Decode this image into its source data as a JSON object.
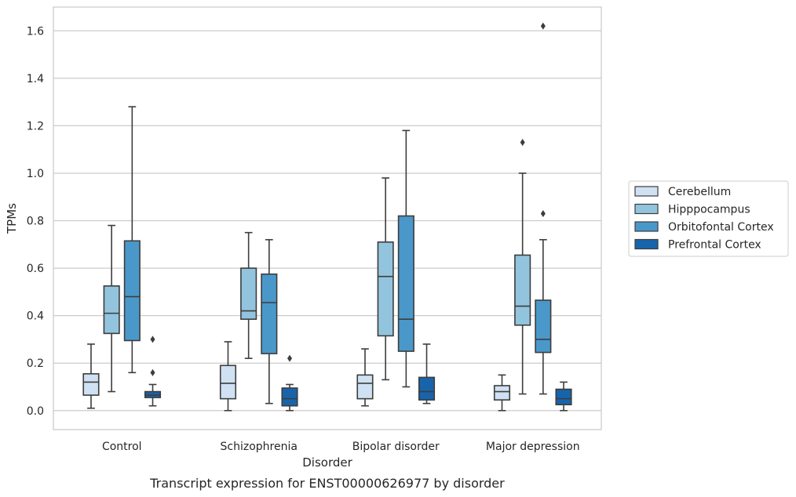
{
  "chart_data": {
    "type": "box",
    "title": "",
    "caption": "Transcript expression for ENST00000626977 by disorder",
    "xlabel": "Disorder",
    "ylabel": "TPMs",
    "ylim": [
      -0.08,
      1.7
    ],
    "yticks": [
      "0.0",
      "0.2",
      "0.4",
      "0.6",
      "0.8",
      "1.0",
      "1.2",
      "1.4",
      "1.6"
    ],
    "grid": true,
    "legend_position": "right",
    "categories": [
      "Control",
      "Schizophrenia",
      "Bipolar disorder",
      "Major depression"
    ],
    "series": [
      {
        "name": "Cerebellum",
        "color": "#cfe1f2",
        "boxes": [
          {
            "whislo": 0.01,
            "q1": 0.065,
            "med": 0.12,
            "q3": 0.155,
            "whishi": 0.28,
            "fliers": []
          },
          {
            "whislo": 0.0,
            "q1": 0.05,
            "med": 0.115,
            "q3": 0.19,
            "whishi": 0.29,
            "fliers": []
          },
          {
            "whislo": 0.02,
            "q1": 0.05,
            "med": 0.115,
            "q3": 0.15,
            "whishi": 0.26,
            "fliers": []
          },
          {
            "whislo": 0.0,
            "q1": 0.045,
            "med": 0.08,
            "q3": 0.105,
            "whishi": 0.15,
            "fliers": []
          }
        ]
      },
      {
        "name": "Hipppocampus",
        "color": "#93c4de",
        "boxes": [
          {
            "whislo": 0.08,
            "q1": 0.325,
            "med": 0.41,
            "q3": 0.525,
            "whishi": 0.78,
            "fliers": []
          },
          {
            "whislo": 0.22,
            "q1": 0.385,
            "med": 0.42,
            "q3": 0.6,
            "whishi": 0.75,
            "fliers": []
          },
          {
            "whislo": 0.13,
            "q1": 0.315,
            "med": 0.565,
            "q3": 0.71,
            "whishi": 0.98,
            "fliers": []
          },
          {
            "whislo": 0.07,
            "q1": 0.36,
            "med": 0.44,
            "q3": 0.655,
            "whishi": 1.0,
            "fliers": [
              1.13
            ]
          }
        ]
      },
      {
        "name": "Orbitofontal Cortex",
        "color": "#4a98c9",
        "boxes": [
          {
            "whislo": 0.16,
            "q1": 0.295,
            "med": 0.48,
            "q3": 0.715,
            "whishi": 1.28,
            "fliers": []
          },
          {
            "whislo": 0.03,
            "q1": 0.24,
            "med": 0.455,
            "q3": 0.575,
            "whishi": 0.72,
            "fliers": []
          },
          {
            "whislo": 0.1,
            "q1": 0.25,
            "med": 0.385,
            "q3": 0.82,
            "whishi": 1.18,
            "fliers": []
          },
          {
            "whislo": 0.07,
            "q1": 0.245,
            "med": 0.3,
            "q3": 0.465,
            "whishi": 0.72,
            "fliers": [
              0.83,
              1.62
            ]
          }
        ]
      },
      {
        "name": "Prefrontal Cortex",
        "color": "#1764ab",
        "boxes": [
          {
            "whislo": 0.02,
            "q1": 0.055,
            "med": 0.065,
            "q3": 0.08,
            "whishi": 0.11,
            "fliers": [
              0.16,
              0.3
            ]
          },
          {
            "whislo": 0.0,
            "q1": 0.02,
            "med": 0.05,
            "q3": 0.095,
            "whishi": 0.11,
            "fliers": [
              0.22
            ]
          },
          {
            "whislo": 0.03,
            "q1": 0.045,
            "med": 0.08,
            "q3": 0.14,
            "whishi": 0.28,
            "fliers": []
          },
          {
            "whislo": 0.0,
            "q1": 0.025,
            "med": 0.05,
            "q3": 0.09,
            "whishi": 0.12,
            "fliers": []
          }
        ]
      }
    ]
  }
}
